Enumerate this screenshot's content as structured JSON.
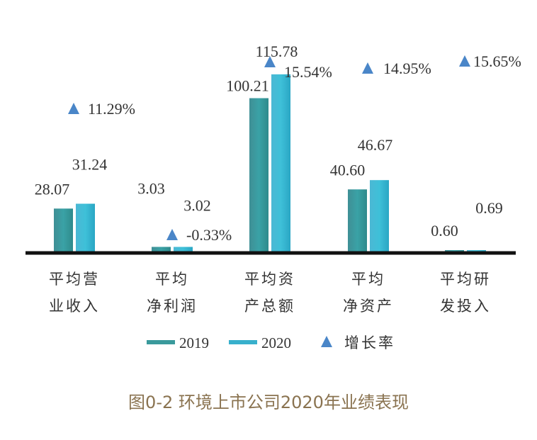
{
  "caption": "图0-2 环境上市公司2020年业绩表现",
  "chart_data": {
    "type": "bar",
    "categories": [
      [
        "平均营",
        "业收入"
      ],
      [
        "平均",
        "净利润"
      ],
      [
        "平均资",
        "产总额"
      ],
      [
        "平均",
        "净资产"
      ],
      [
        "平均研",
        "发投入"
      ]
    ],
    "series": [
      {
        "name": "2019",
        "values": [
          28.07,
          3.03,
          100.21,
          40.6,
          0.6
        ],
        "labels": [
          "28.07",
          "3.03",
          "100.21",
          "40.60",
          "0.60"
        ],
        "color": "#3a9a9c"
      },
      {
        "name": "2020",
        "values": [
          31.24,
          3.02,
          115.78,
          46.67,
          0.69
        ],
        "labels": [
          "31.24",
          "3.02",
          "115.78",
          "46.67",
          "0.69"
        ],
        "color": "#38b0cc"
      }
    ],
    "growth": {
      "name": "增长率",
      "values": [
        11.29,
        -0.33,
        15.54,
        14.95,
        15.65
      ],
      "labels": [
        "11.29%",
        "-0.33%",
        "15.54%",
        "14.95%",
        "15.65%"
      ],
      "color": "#4a86c8"
    },
    "legend_position": "bottom",
    "grid": false
  }
}
